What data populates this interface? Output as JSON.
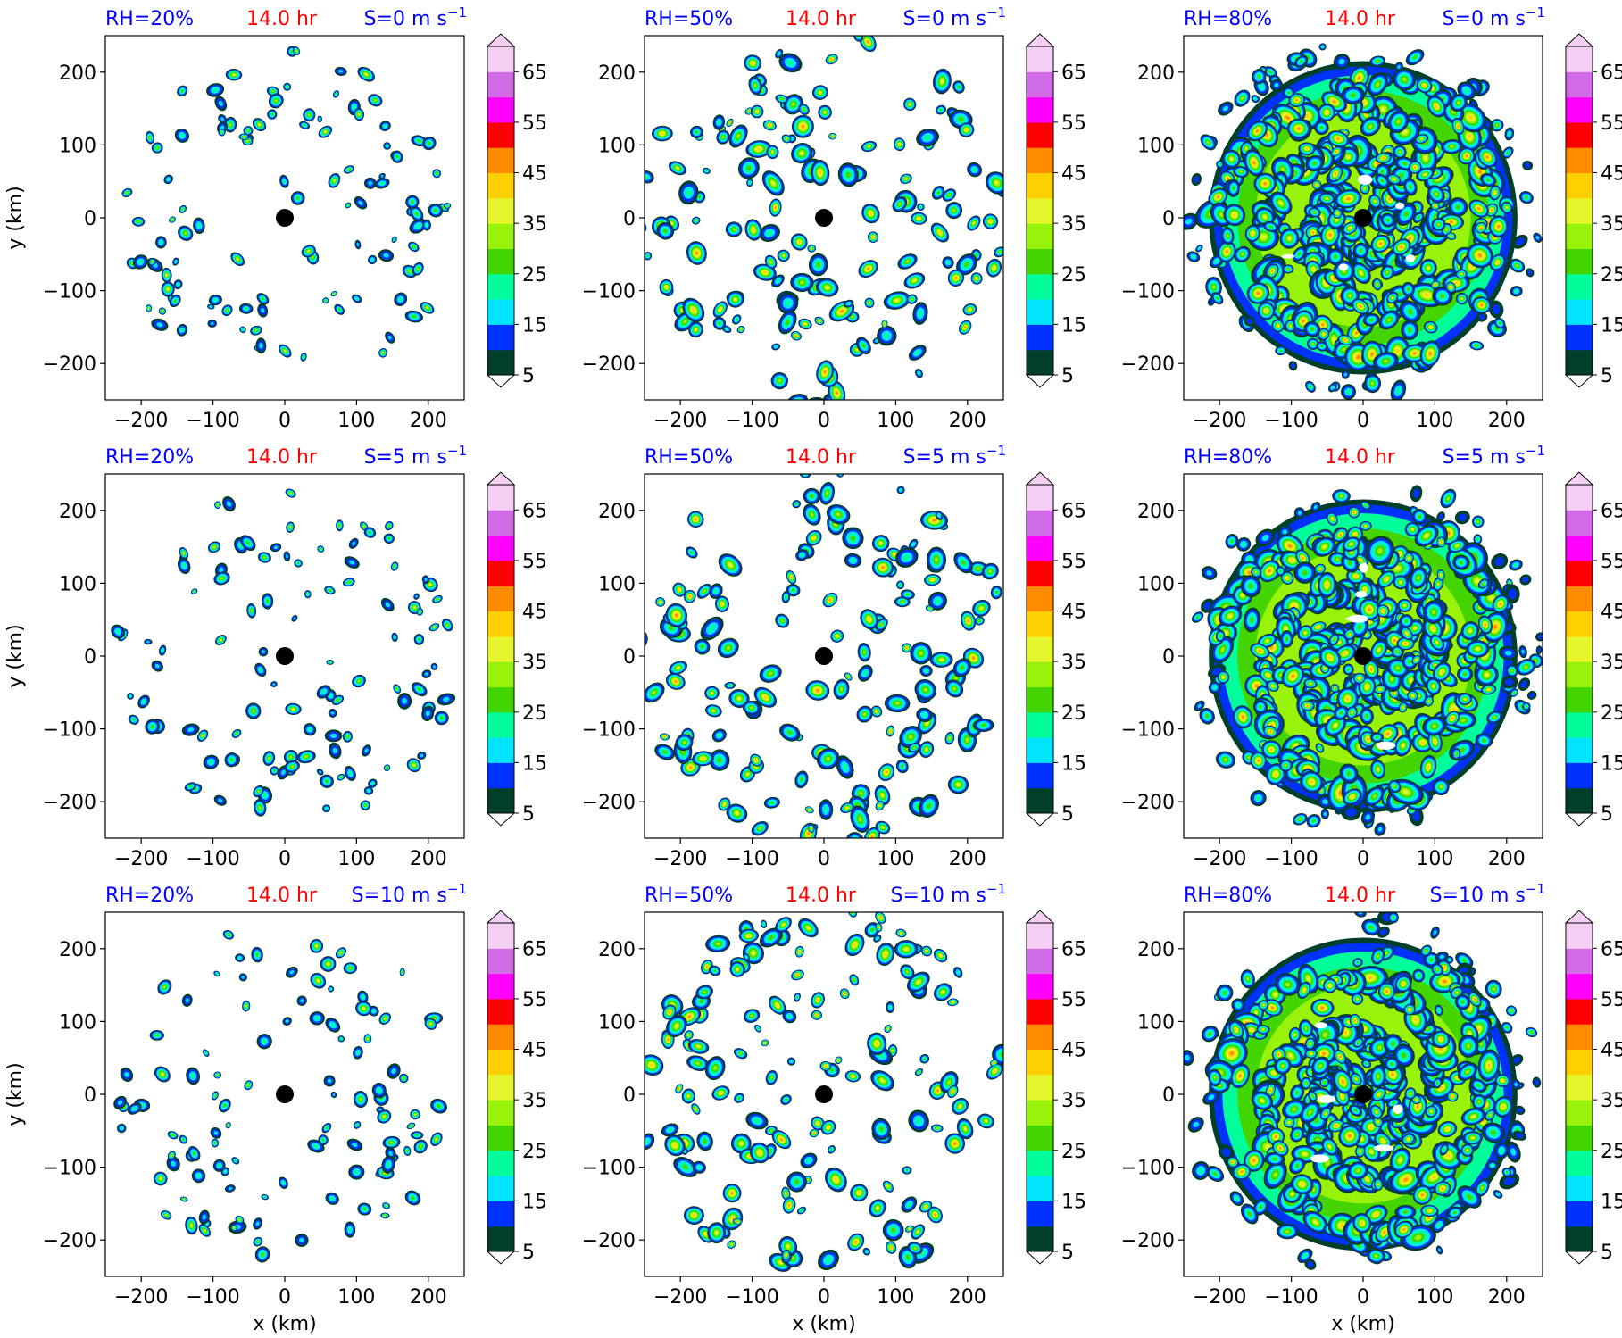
{
  "figure": {
    "time_label": "14.0 hr",
    "colorbar": {
      "levels": [
        5,
        10,
        15,
        20,
        25,
        30,
        35,
        40,
        45,
        50,
        55,
        60,
        65,
        70
      ],
      "tick_labels": [
        "5",
        "15",
        "25",
        "35",
        "45",
        "55",
        "65"
      ],
      "colors": [
        "#003f2a",
        "#0032ff",
        "#00e5ff",
        "#00ff9a",
        "#44d400",
        "#99f20a",
        "#e6f52d",
        "#ffd000",
        "#ff8c00",
        "#ff0000",
        "#ff00ff",
        "#d26be6",
        "#f6d0f4"
      ],
      "extend": "both"
    },
    "x_tick_labels": [
      "−200",
      "−100",
      "0",
      "100",
      "200"
    ],
    "y_tick_labels": [
      "200",
      "100",
      "0",
      "−100",
      "−200"
    ]
  },
  "chart_data": [
    {
      "type": "heatmap",
      "rh_label": "RH=20%",
      "time_label": "14.0 hr",
      "shear_label": "S=0 m s",
      "shear_exp": "−1",
      "ylabel": "y (km)",
      "xlabel": "",
      "xlim": [
        -250,
        250
      ],
      "ylim": [
        -250,
        250
      ],
      "center_marker": [
        0,
        0
      ],
      "coverage": "sparse",
      "levels": [
        5,
        70
      ]
    },
    {
      "type": "heatmap",
      "rh_label": "RH=50%",
      "time_label": "14.0 hr",
      "shear_label": "S=0 m s",
      "shear_exp": "−1",
      "ylabel": "",
      "xlabel": "",
      "xlim": [
        -250,
        250
      ],
      "ylim": [
        -250,
        250
      ],
      "center_marker": [
        0,
        0
      ],
      "coverage": "moderate",
      "levels": [
        5,
        70
      ]
    },
    {
      "type": "heatmap",
      "rh_label": "RH=80%",
      "time_label": "14.0 hr",
      "shear_label": "S=0 m s",
      "shear_exp": "−1",
      "ylabel": "",
      "xlabel": "",
      "xlim": [
        -250,
        250
      ],
      "ylim": [
        -250,
        250
      ],
      "center_marker": [
        0,
        0
      ],
      "coverage": "dense",
      "levels": [
        5,
        70
      ]
    },
    {
      "type": "heatmap",
      "rh_label": "RH=20%",
      "time_label": "14.0 hr",
      "shear_label": "S=5 m s",
      "shear_exp": "−1",
      "ylabel": "y (km)",
      "xlabel": "",
      "xlim": [
        -250,
        250
      ],
      "ylim": [
        -250,
        250
      ],
      "center_marker": [
        0,
        0
      ],
      "coverage": "sparse",
      "levels": [
        5,
        70
      ]
    },
    {
      "type": "heatmap",
      "rh_label": "RH=50%",
      "time_label": "14.0 hr",
      "shear_label": "S=5 m s",
      "shear_exp": "−1",
      "ylabel": "",
      "xlabel": "",
      "xlim": [
        -250,
        250
      ],
      "ylim": [
        -250,
        250
      ],
      "center_marker": [
        0,
        0
      ],
      "coverage": "moderate",
      "levels": [
        5,
        70
      ]
    },
    {
      "type": "heatmap",
      "rh_label": "RH=80%",
      "time_label": "14.0 hr",
      "shear_label": "S=5 m s",
      "shear_exp": "−1",
      "ylabel": "",
      "xlabel": "",
      "xlim": [
        -250,
        250
      ],
      "ylim": [
        -250,
        250
      ],
      "center_marker": [
        0,
        0
      ],
      "coverage": "dense",
      "levels": [
        5,
        70
      ]
    },
    {
      "type": "heatmap",
      "rh_label": "RH=20%",
      "time_label": "14.0 hr",
      "shear_label": "S=10 m s",
      "shear_exp": "−1",
      "ylabel": "y (km)",
      "xlabel": "x (km)",
      "xlim": [
        -250,
        250
      ],
      "ylim": [
        -250,
        250
      ],
      "center_marker": [
        0,
        0
      ],
      "coverage": "sparse",
      "levels": [
        5,
        70
      ]
    },
    {
      "type": "heatmap",
      "rh_label": "RH=50%",
      "time_label": "14.0 hr",
      "shear_label": "S=10 m s",
      "shear_exp": "−1",
      "ylabel": "",
      "xlabel": "x (km)",
      "xlim": [
        -250,
        250
      ],
      "ylim": [
        -250,
        250
      ],
      "center_marker": [
        0,
        0
      ],
      "coverage": "moderate",
      "levels": [
        5,
        70
      ]
    },
    {
      "type": "heatmap",
      "rh_label": "RH=80%",
      "time_label": "14.0 hr",
      "shear_label": "S=10 m s",
      "shear_exp": "−1",
      "ylabel": "",
      "xlabel": "x (km)",
      "xlim": [
        -250,
        250
      ],
      "ylim": [
        -250,
        250
      ],
      "center_marker": [
        0,
        0
      ],
      "coverage": "dense",
      "levels": [
        5,
        70
      ]
    }
  ]
}
